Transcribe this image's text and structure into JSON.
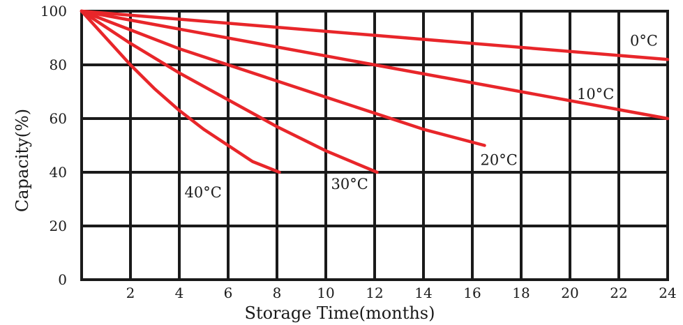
{
  "chart_data": {
    "type": "line",
    "title": "",
    "xlabel": "Storage Time(months)",
    "ylabel": "Capacity(%)",
    "xlim": [
      0,
      24
    ],
    "ylim": [
      0,
      100
    ],
    "x_ticks": [
      2,
      4,
      6,
      8,
      10,
      12,
      14,
      16,
      18,
      20,
      22,
      24
    ],
    "x_tick_labels": [
      "2",
      "4",
      "6",
      "8",
      "10",
      "12",
      "14",
      "16",
      "18",
      "20",
      "22",
      "24"
    ],
    "y_ticks": [
      0,
      20,
      40,
      60,
      80,
      100
    ],
    "y_tick_labels": [
      "0",
      "20",
      "40",
      "60",
      "80",
      "100"
    ],
    "grid": true,
    "line_color": "#e8262a",
    "grid_color": "#1a1a1a",
    "series": [
      {
        "name": "0°C",
        "x": [
          0,
          24
        ],
        "y": [
          100,
          82
        ]
      },
      {
        "name": "10°C",
        "x": [
          0,
          24
        ],
        "y": [
          100,
          60
        ]
      },
      {
        "name": "20°C",
        "x": [
          0,
          2,
          4,
          6,
          8,
          10,
          12,
          14,
          16.5
        ],
        "y": [
          100,
          93,
          86,
          80,
          74,
          68,
          62,
          56,
          50
        ]
      },
      {
        "name": "30°C",
        "x": [
          0,
          2,
          4,
          6,
          8,
          10,
          12.1
        ],
        "y": [
          100,
          88,
          77,
          67,
          57,
          48,
          40
        ]
      },
      {
        "name": "40°C",
        "x": [
          0,
          1,
          2,
          3,
          4,
          5,
          6,
          7,
          8.1
        ],
        "y": [
          100,
          90,
          80,
          71,
          63,
          56,
          50,
          44,
          40
        ]
      }
    ]
  }
}
